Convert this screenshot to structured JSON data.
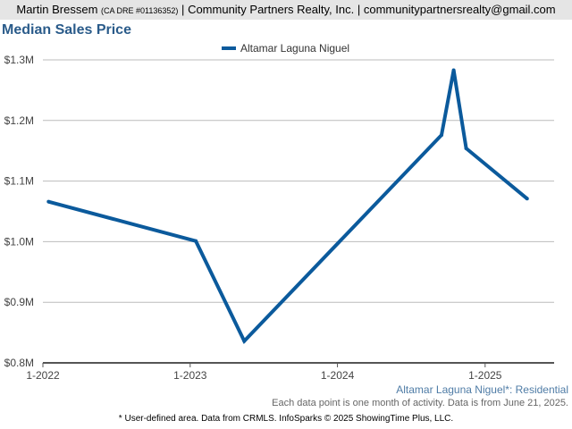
{
  "header": {
    "agent_name": "Martin Bressem",
    "agent_license": "(CA DRE #01136352)",
    "separator": "|",
    "company": "Community Partners Realty, Inc.",
    "email": "communitypartnersrealty@gmail.com"
  },
  "chart_data": {
    "type": "line",
    "title": "Median Sales Price",
    "xlabel": "",
    "ylabel": "",
    "legend_position": "top",
    "grid": true,
    "series": [
      {
        "name": "Altamar Laguna Niguel",
        "color": "#0b5a9c",
        "points": [
          {
            "x": "2022-01-15",
            "y": 1066000
          },
          {
            "x": "2023-01-15",
            "y": 1001000
          },
          {
            "x": "2023-05-15",
            "y": 836000
          },
          {
            "x": "2024-09-15",
            "y": 1176000
          },
          {
            "x": "2024-10-15",
            "y": 1283000
          },
          {
            "x": "2024-11-15",
            "y": 1154000
          },
          {
            "x": "2025-04-15",
            "y": 1071000
          }
        ]
      }
    ],
    "xlim": [
      "2022-01-01",
      "2025-06-21"
    ],
    "ylim": [
      800000,
      1300000
    ],
    "x_ticks": [
      {
        "x": "2022-01-01",
        "label": "1-2022"
      },
      {
        "x": "2023-01-01",
        "label": "1-2023"
      },
      {
        "x": "2024-01-01",
        "label": "1-2024"
      },
      {
        "x": "2025-01-01",
        "label": "1-2025"
      }
    ],
    "y_ticks": [
      {
        "y": 800000,
        "label": "$0.8M"
      },
      {
        "y": 900000,
        "label": "$0.9M"
      },
      {
        "y": 1000000,
        "label": "$1.0M"
      },
      {
        "y": 1100000,
        "label": "$1.1M"
      },
      {
        "y": 1200000,
        "label": "$1.2M"
      },
      {
        "y": 1300000,
        "label": "$1.3M"
      }
    ]
  },
  "footer": {
    "area_label": "Altamar Laguna Niguel*: Residential",
    "data_note": "Each data point is one month of activity. Data is from June 21, 2025.",
    "disclaimer": "* User-defined area. Data from CRMLS. InfoSparks © 2025 ShowingTime Plus, LLC."
  },
  "colors": {
    "line": "#0b5a9c",
    "title": "#2a5b8a",
    "area_label": "#4f7ca6",
    "header_bg": "#e5e5e5",
    "grid": "#bbbbbb"
  }
}
